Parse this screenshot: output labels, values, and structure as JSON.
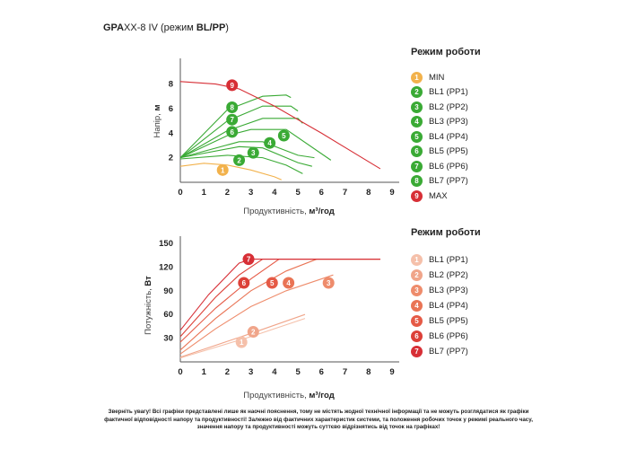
{
  "title": {
    "model": "GPA",
    "suffix": "XX-8 IV",
    "mode_text": " (режим ",
    "mode_value": "BL/PP",
    "close": ")"
  },
  "charts": {
    "head": {
      "legend_title": "Режим роботи",
      "legend_items": [
        {
          "badge": "1",
          "label": "MIN",
          "color": "#f2b24c"
        },
        {
          "badge": "2",
          "label": "BL1 (PP1)",
          "color": "#3aaa35"
        },
        {
          "badge": "3",
          "label": "BL2 (PP2)",
          "color": "#3aaa35"
        },
        {
          "badge": "4",
          "label": "BL3 (PP3)",
          "color": "#3aaa35"
        },
        {
          "badge": "5",
          "label": "BL4 (PP4)",
          "color": "#3aaa35"
        },
        {
          "badge": "6",
          "label": "BL5 (PP5)",
          "color": "#3aaa35"
        },
        {
          "badge": "7",
          "label": "BL6 (PP6)",
          "color": "#3aaa35"
        },
        {
          "badge": "8",
          "label": "BL7 (PP7)",
          "color": "#3aaa35"
        },
        {
          "badge": "9",
          "label": "MAX",
          "color": "#d72f36"
        }
      ],
      "ylabel_plain": "Напір, ",
      "ylabel_bold": "м",
      "xlabel_plain": "Продуктивність, ",
      "xlabel_bold": "м³/год",
      "x_ticks": [
        "0",
        "1",
        "2",
        "3",
        "4",
        "5",
        "6",
        "7",
        "8",
        "9"
      ],
      "y_ticks": [
        "2",
        "4",
        "6",
        "8"
      ]
    },
    "power": {
      "legend_title": "Режим роботи",
      "legend_items": [
        {
          "badge": "1",
          "label": "BL1 (PP1)",
          "color": "#f5c0aa"
        },
        {
          "badge": "2",
          "label": "BL2 (PP2)",
          "color": "#f0a58a"
        },
        {
          "badge": "3",
          "label": "BL3 (PP3)",
          "color": "#ee8c6c"
        },
        {
          "badge": "4",
          "label": "BL4 (PP4)",
          "color": "#e97455"
        },
        {
          "badge": "5",
          "label": "BL5 (PP5)",
          "color": "#e55a46"
        },
        {
          "badge": "6",
          "label": "BL6 (PP6)",
          "color": "#dc4038"
        },
        {
          "badge": "7",
          "label": "BL7 (PP7)",
          "color": "#d72f36"
        }
      ],
      "ylabel_plain": "Потужність, ",
      "ylabel_bold": "Вт",
      "xlabel_plain": "Продуктивність, ",
      "xlabel_bold": "м³/год",
      "x_ticks": [
        "0",
        "1",
        "2",
        "3",
        "4",
        "5",
        "6",
        "7",
        "8",
        "9"
      ],
      "y_ticks": [
        "30",
        "60",
        "90",
        "120",
        "150"
      ]
    }
  },
  "chart_data": [
    {
      "type": "line",
      "xlim": [
        0,
        9
      ],
      "ylim": [
        0,
        9.5
      ],
      "series": [
        {
          "badge": "1",
          "color": "#f2b24c",
          "x": [
            0,
            1.0,
            2.0,
            3.0,
            4.0,
            4.3
          ],
          "y": [
            1.3,
            1.55,
            1.4,
            1.0,
            0.45,
            0.2
          ],
          "label_at": [
            1.8,
            1.0
          ]
        },
        {
          "badge": "2",
          "color": "#3aaa35",
          "x": [
            0,
            2.0,
            3.5,
            4.5,
            5.2
          ],
          "y": [
            1.9,
            2.2,
            2.0,
            1.4,
            0.7
          ],
          "label_at": [
            2.5,
            1.8
          ]
        },
        {
          "badge": "3",
          "color": "#3aaa35",
          "x": [
            0,
            2.5,
            3.5,
            5.0,
            5.6
          ],
          "y": [
            2.0,
            2.9,
            2.8,
            1.6,
            1.3
          ],
          "label_at": [
            3.1,
            2.4
          ]
        },
        {
          "badge": "4",
          "color": "#3aaa35",
          "x": [
            0,
            2.5,
            3.5,
            5.0,
            5.7
          ],
          "y": [
            2.0,
            3.3,
            3.3,
            2.2,
            2.0
          ],
          "label_at": [
            3.8,
            3.2
          ]
        },
        {
          "badge": "5",
          "color": "#3aaa35",
          "x": [
            0,
            2.0,
            3.0,
            4.5,
            6.4
          ],
          "y": [
            2.0,
            3.8,
            4.3,
            4.3,
            1.8
          ],
          "label_at": [
            4.4,
            3.8
          ]
        },
        {
          "badge": "6",
          "color": "#3aaa35",
          "x": [
            0,
            2.0,
            3.5,
            5.0,
            5.2
          ],
          "y": [
            2.0,
            4.2,
            5.2,
            5.2,
            4.8
          ],
          "label_at": [
            2.2,
            4.1
          ]
        },
        {
          "badge": "7",
          "color": "#3aaa35",
          "x": [
            0,
            2.0,
            3.5,
            4.7,
            5.0
          ],
          "y": [
            2.0,
            5.0,
            6.2,
            6.2,
            5.8
          ],
          "label_at": [
            2.2,
            5.1
          ]
        },
        {
          "badge": "8",
          "color": "#3aaa35",
          "x": [
            0,
            2.0,
            3.5,
            4.5,
            4.7
          ],
          "y": [
            2.0,
            5.9,
            7.0,
            7.1,
            6.9
          ],
          "label_at": [
            2.2,
            6.1
          ]
        },
        {
          "badge": "9",
          "color": "#d72f36",
          "x": [
            0,
            1.5,
            2.5,
            4.0,
            6.0,
            8.5
          ],
          "y": [
            8.2,
            8.0,
            7.6,
            6.2,
            4.0,
            1.1
          ],
          "label_at": [
            2.2,
            7.9
          ]
        }
      ]
    },
    {
      "type": "line",
      "xlim": [
        0,
        9
      ],
      "ylim": [
        0,
        150
      ],
      "series": [
        {
          "badge": "1",
          "color": "#f5c0aa",
          "x": [
            0,
            3,
            5.3
          ],
          "y": [
            5,
            32,
            55
          ],
          "label_at": [
            2.6,
            25
          ]
        },
        {
          "badge": "2",
          "color": "#f0a58a",
          "x": [
            0,
            3,
            5.3
          ],
          "y": [
            6,
            36,
            60
          ],
          "label_at": [
            3.1,
            38
          ]
        },
        {
          "badge": "3",
          "color": "#ee8c6c",
          "x": [
            0,
            1.5,
            3.0,
            4.5,
            6.5
          ],
          "y": [
            10,
            42,
            70,
            90,
            110
          ],
          "label_at": [
            6.3,
            100
          ]
        },
        {
          "badge": "4",
          "color": "#e97455",
          "x": [
            0,
            1.5,
            3.0,
            4.5,
            5.8,
            8.5
          ],
          "y": [
            15,
            55,
            90,
            115,
            130,
            130
          ],
          "label_at": [
            4.6,
            100
          ]
        },
        {
          "badge": "5",
          "color": "#e55a46",
          "x": [
            0,
            1.5,
            3.0,
            4.2,
            8.5
          ],
          "y": [
            25,
            68,
            105,
            130,
            130
          ],
          "label_at": [
            3.9,
            100
          ]
        },
        {
          "badge": "6",
          "color": "#dc4038",
          "x": [
            0,
            1.5,
            2.5,
            3.5,
            8.5
          ],
          "y": [
            32,
            82,
            110,
            130,
            130
          ],
          "label_at": [
            2.7,
            100
          ]
        },
        {
          "badge": "7",
          "color": "#d72f36",
          "x": [
            0,
            1.2,
            2.5,
            3.0,
            8.5
          ],
          "y": [
            40,
            85,
            125,
            130,
            130
          ],
          "label_at": [
            2.9,
            130
          ]
        }
      ]
    }
  ],
  "footer": "Зверніть увагу! Всі графіки представлені лише як наочні пояснення, тому не містять жодної технічної інформації та не можуть розглядатися як графіки фактичної відповідності напору та продуктивності! Залежно від фактичних характеристик системи, та положення робочих точок у режимі реального часу, значення напору та продуктивності можуть суттєво відрізнятись від точок на графіках!"
}
